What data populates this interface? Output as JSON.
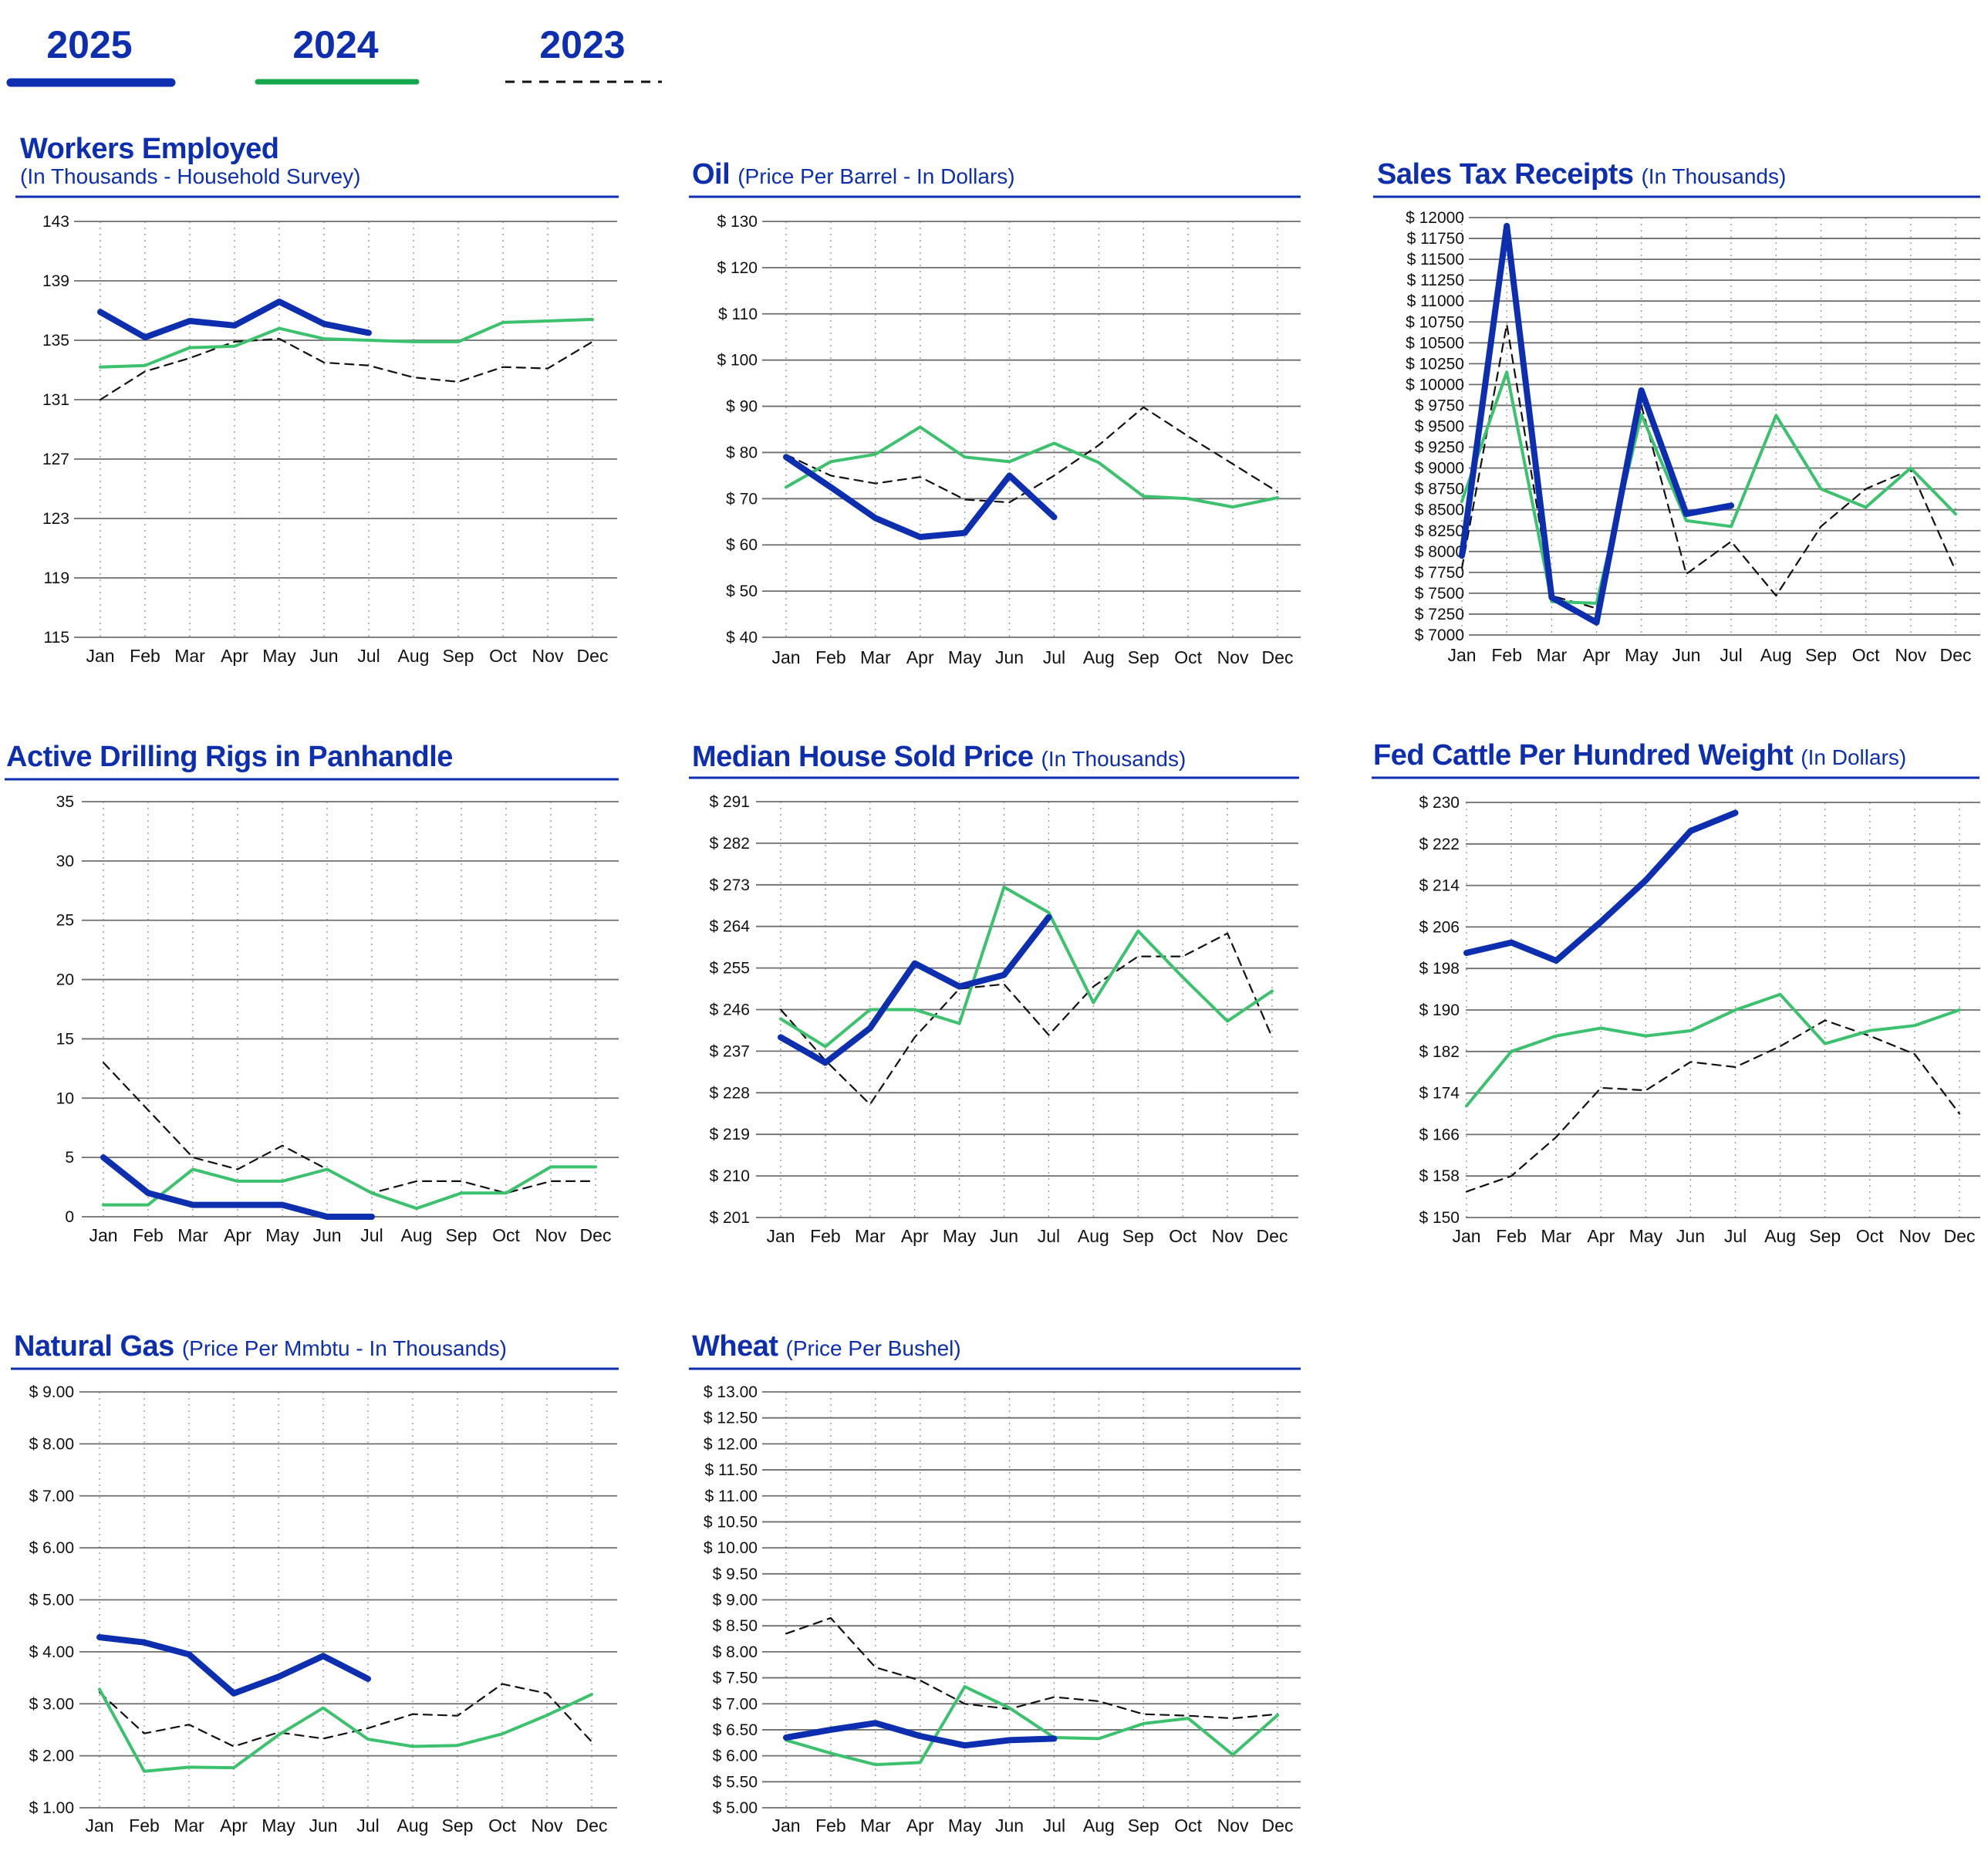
{
  "legend": {
    "entries": [
      {
        "label": "2025",
        "color": "#0d2faf",
        "style": "solid-thick"
      },
      {
        "label": "2024",
        "color": "#14a84a",
        "style": "solid"
      },
      {
        "label": "2023",
        "color": "#111111",
        "style": "dashed"
      }
    ]
  },
  "months": [
    "Jan",
    "Feb",
    "Mar",
    "Apr",
    "May",
    "Jun",
    "Jul",
    "Aug",
    "Sep",
    "Oct",
    "Nov",
    "Dec"
  ],
  "chart_data": [
    {
      "id": "workers",
      "type": "line",
      "title": "Workers Employed",
      "subtitle": "(In Thousands - Household Survey)",
      "xlabel": "",
      "ylabel": "",
      "ylim": [
        115,
        143
      ],
      "yticks": [
        115,
        119,
        123,
        127,
        131,
        135,
        139,
        143
      ],
      "ytick_labels": [
        "115",
        "119",
        "123",
        "127",
        "131",
        "135",
        "139",
        "143"
      ],
      "grid": true,
      "series": [
        {
          "name": "2025",
          "values": [
            136.9,
            135.2,
            136.3,
            136.0,
            137.6,
            136.1,
            135.5
          ]
        },
        {
          "name": "2024",
          "values": [
            133.2,
            133.3,
            134.5,
            134.6,
            135.8,
            135.1,
            135.0,
            134.9,
            134.9,
            136.2,
            136.3,
            136.4
          ]
        },
        {
          "name": "2023",
          "values": [
            131.0,
            132.9,
            133.8,
            134.9,
            135.1,
            133.5,
            133.3,
            132.5,
            132.2,
            133.2,
            133.1,
            134.9
          ]
        }
      ]
    },
    {
      "id": "oil",
      "type": "line",
      "title": "Oil",
      "subtitle": "(Price Per Barrel - In Dollars)",
      "xlabel": "",
      "ylabel": "",
      "ylim": [
        40,
        130
      ],
      "yticks": [
        40,
        50,
        60,
        70,
        80,
        90,
        100,
        110,
        120,
        130
      ],
      "ytick_labels": [
        "$  40",
        "$  50",
        "$  60",
        "$  70",
        "$  80",
        "$  90",
        "$ 100",
        "$ 110",
        "$ 120",
        "$ 130"
      ],
      "grid": true,
      "series": [
        {
          "name": "2025",
          "values": [
            79,
            72.5,
            65.8,
            61.7,
            62.6,
            75,
            66
          ]
        },
        {
          "name": "2024",
          "values": [
            72.5,
            78,
            79.6,
            85.5,
            79,
            78,
            82,
            77.8,
            70.5,
            70,
            68.2,
            70.2
          ]
        },
        {
          "name": "2023",
          "values": [
            79.5,
            75,
            73.3,
            74.7,
            69.8,
            69.2,
            75,
            81.6,
            89.8,
            83.5,
            77.5,
            71.5
          ]
        }
      ]
    },
    {
      "id": "sales_tax",
      "type": "line",
      "title": "Sales Tax Receipts",
      "subtitle": "(In Thousands)",
      "xlabel": "",
      "ylabel": "",
      "ylim": [
        7000,
        12000
      ],
      "yticks": [
        7000,
        7250,
        7500,
        7750,
        8000,
        8250,
        8500,
        8750,
        9000,
        9250,
        9500,
        9750,
        10000,
        10250,
        10500,
        10750,
        11000,
        11250,
        11500,
        11750,
        12000
      ],
      "ytick_labels": [
        "$ 7000",
        "$ 7250",
        "$ 7500",
        "$ 7750",
        "$ 8000",
        "$ 8250",
        "$ 8500",
        "$ 8750",
        "$ 9000",
        "$ 9250",
        "$ 9500",
        "$ 9750",
        "$ 10000",
        "$ 10250",
        "$ 10500",
        "$ 10750",
        "$ 11000",
        "$ 11250",
        "$ 11500",
        "$ 11750",
        "$ 12000"
      ],
      "grid": true,
      "series": [
        {
          "name": "2025",
          "values": [
            7950,
            11900,
            7450,
            7150,
            9930,
            8450,
            8550
          ]
        },
        {
          "name": "2024",
          "values": [
            8600,
            10150,
            7400,
            7380,
            9640,
            8370,
            8300,
            9630,
            8750,
            8530,
            9000,
            8450
          ]
        },
        {
          "name": "2023",
          "values": [
            7800,
            10720,
            7470,
            7320,
            9750,
            7730,
            8120,
            7470,
            8300,
            8750,
            8980,
            7770
          ]
        }
      ]
    },
    {
      "id": "rigs",
      "type": "line",
      "title": "Active Drilling Rigs in Panhandle",
      "subtitle": "",
      "xlabel": "",
      "ylabel": "",
      "ylim": [
        0,
        35
      ],
      "yticks": [
        0,
        5,
        10,
        15,
        20,
        25,
        30,
        35
      ],
      "ytick_labels": [
        "0",
        "5",
        "10",
        "15",
        "20",
        "25",
        "30",
        "35"
      ],
      "grid": true,
      "series": [
        {
          "name": "2025",
          "values": [
            5,
            2,
            1,
            1,
            1,
            0,
            0
          ]
        },
        {
          "name": "2024",
          "values": [
            1,
            1,
            4,
            3,
            3,
            4,
            2,
            0.7,
            2,
            2,
            4.2,
            4.2
          ]
        },
        {
          "name": "2023",
          "values": [
            13,
            9,
            5,
            4,
            6,
            4,
            2,
            3,
            3,
            2,
            3,
            3
          ]
        }
      ]
    },
    {
      "id": "house",
      "type": "line",
      "title": "Median House Sold Price",
      "subtitle": "(In Thousands)",
      "xlabel": "",
      "ylabel": "",
      "ylim": [
        201,
        291
      ],
      "yticks": [
        201,
        210,
        219,
        228,
        237,
        246,
        255,
        264,
        273,
        282,
        291
      ],
      "ytick_labels": [
        "$ 201",
        "$ 210",
        "$ 219",
        "$ 228",
        "$ 237",
        "$ 246",
        "$ 255",
        "$ 264",
        "$ 273",
        "$ 282",
        "$ 291"
      ],
      "grid": true,
      "series": [
        {
          "name": "2025",
          "values": [
            240,
            234.5,
            242,
            256,
            251,
            253.5,
            266
          ]
        },
        {
          "name": "2024",
          "values": [
            244,
            238,
            246,
            246,
            243,
            272.5,
            267,
            247.5,
            263,
            253,
            243.5,
            250
          ]
        },
        {
          "name": "2023",
          "values": [
            246,
            235,
            225.5,
            240,
            250.5,
            251.5,
            240.5,
            251,
            257.5,
            257.5,
            262.5,
            240
          ]
        }
      ]
    },
    {
      "id": "cattle",
      "type": "line",
      "title": "Fed Cattle Per Hundred Weight",
      "subtitle": "(In Dollars)",
      "xlabel": "",
      "ylabel": "",
      "ylim": [
        150,
        230
      ],
      "yticks": [
        150,
        158,
        166,
        174,
        182,
        190,
        198,
        206,
        214,
        222,
        230
      ],
      "ytick_labels": [
        "$ 150",
        "$ 158",
        "$ 166",
        "$ 174",
        "$ 182",
        "$ 190",
        "$ 198",
        "$ 206",
        "$ 214",
        "$ 222",
        "$ 230"
      ],
      "grid": true,
      "series": [
        {
          "name": "2025",
          "values": [
            201,
            203,
            199.5,
            207,
            215,
            224.5,
            228
          ]
        },
        {
          "name": "2024",
          "values": [
            171.5,
            182,
            185,
            186.5,
            185,
            186,
            190,
            193,
            183.5,
            186,
            187,
            190
          ]
        },
        {
          "name": "2023",
          "values": [
            155,
            158,
            165.5,
            175,
            174.5,
            180,
            179,
            183,
            188,
            185,
            181.5,
            170
          ]
        }
      ]
    },
    {
      "id": "natgas",
      "type": "line",
      "title": "Natural Gas",
      "subtitle": "(Price Per Mmbtu - In Thousands)",
      "xlabel": "",
      "ylabel": "",
      "ylim": [
        1,
        9
      ],
      "yticks": [
        1,
        2,
        3,
        4,
        5,
        6,
        7,
        8,
        9
      ],
      "ytick_labels": [
        "$ 1.00",
        "$ 2.00",
        "$ 3.00",
        "$ 4.00",
        "$ 5.00",
        "$ 6.00",
        "$ 7.00",
        "$ 8.00",
        "$ 9.00"
      ],
      "grid": true,
      "series": [
        {
          "name": "2025",
          "values": [
            4.28,
            4.18,
            3.95,
            3.2,
            3.52,
            3.92,
            3.48
          ]
        },
        {
          "name": "2024",
          "values": [
            3.28,
            1.7,
            1.78,
            1.77,
            2.4,
            2.92,
            2.32,
            2.18,
            2.2,
            2.42,
            2.78,
            3.18
          ]
        },
        {
          "name": "2023",
          "values": [
            3.22,
            2.43,
            2.6,
            2.18,
            2.45,
            2.33,
            2.53,
            2.8,
            2.77,
            3.38,
            3.2,
            2.27
          ]
        }
      ]
    },
    {
      "id": "wheat",
      "type": "line",
      "title": "Wheat",
      "subtitle": "(Price Per Bushel)",
      "xlabel": "",
      "ylabel": "",
      "ylim": [
        5,
        13
      ],
      "yticks": [
        5,
        5.5,
        6,
        6.5,
        7,
        7.5,
        8,
        8.5,
        9,
        9.5,
        10,
        10.5,
        11,
        11.5,
        12,
        12.5,
        13
      ],
      "ytick_labels": [
        "$  5.00",
        "$  5.50",
        "$  6.00",
        "$  6.50",
        "$  7.00",
        "$  7.50",
        "$  8.00",
        "$  8.50",
        "$  9.00",
        "$  9.50",
        "$ 10.00",
        "$ 10.50",
        "$ 11.00",
        "$ 11.50",
        "$ 12.00",
        "$ 12.50",
        "$ 13.00"
      ],
      "grid": true,
      "series": [
        {
          "name": "2025",
          "values": [
            6.35,
            6.5,
            6.63,
            6.38,
            6.2,
            6.3,
            6.33
          ]
        },
        {
          "name": "2024",
          "values": [
            6.3,
            6.05,
            5.83,
            5.87,
            7.33,
            6.92,
            6.35,
            6.33,
            6.62,
            6.72,
            6.02,
            6.78
          ]
        },
        {
          "name": "2023",
          "values": [
            8.35,
            8.65,
            7.7,
            7.45,
            7.0,
            6.9,
            7.13,
            7.05,
            6.8,
            6.77,
            6.72,
            6.8
          ]
        }
      ]
    }
  ]
}
